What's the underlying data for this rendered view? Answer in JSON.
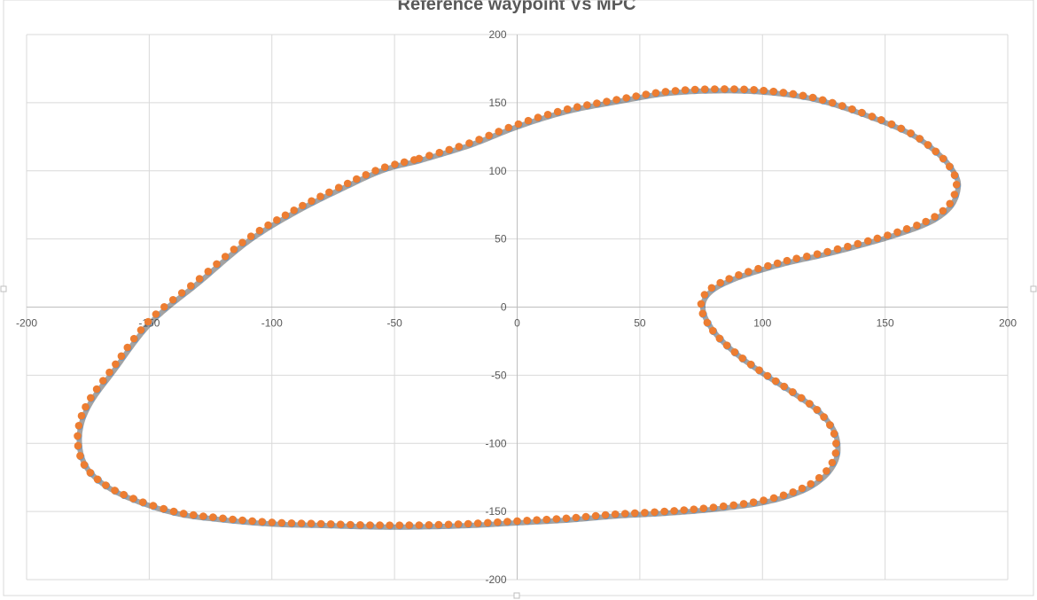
{
  "chart_data": {
    "type": "scatter",
    "title": "Reference waypoint Vs MPC",
    "xlabel": "",
    "ylabel": "",
    "xlim": [
      -200,
      200
    ],
    "ylim": [
      -200,
      200
    ],
    "x_ticks": [
      -200,
      -150,
      -100,
      -50,
      0,
      50,
      100,
      150,
      200
    ],
    "y_ticks": [
      -200,
      -150,
      -100,
      -50,
      0,
      50,
      100,
      150,
      200
    ],
    "grid": true,
    "legend": "none",
    "series": [
      {
        "color": "#5b9bd5",
        "role": "reference waypoints",
        "path_x": [
          -40,
          -20,
          0,
          20,
          40,
          60,
          80,
          100,
          120,
          140,
          160,
          172,
          178,
          179,
          176,
          168,
          155,
          140,
          125,
          110,
          98,
          88,
          80,
          76,
          75,
          77,
          82,
          90,
          100,
          112,
          122,
          128,
          130,
          129,
          124,
          115,
          100,
          80,
          60,
          40,
          20,
          0,
          -20,
          -40,
          -60,
          -80,
          -100,
          -120,
          -140,
          -160,
          -172,
          -178,
          -179,
          -175,
          -165,
          -150,
          -130,
          -110,
          -90,
          -70,
          -55,
          -42
        ],
        "path_y": [
          109,
          120,
          134,
          145,
          152,
          158,
          160,
          159,
          154,
          143,
          128,
          112,
          98,
          88,
          75,
          64,
          55,
          47,
          40,
          34,
          28,
          22,
          15,
          8,
          0,
          -10,
          -22,
          -35,
          -48,
          -62,
          -75,
          -88,
          -100,
          -112,
          -124,
          -134,
          -142,
          -147,
          -150,
          -152,
          -155,
          -157,
          -159,
          -160,
          -160,
          -159,
          -158,
          -155,
          -150,
          -138,
          -125,
          -110,
          -90,
          -70,
          -45,
          -10,
          20,
          50,
          72,
          90,
          102,
          108
        ]
      },
      {
        "color": "#ed7d31",
        "role": "MPC trajectory",
        "path_x": [
          -40,
          -20,
          0,
          20,
          40,
          60,
          80,
          100,
          120,
          140,
          160,
          172,
          178,
          179,
          176,
          168,
          155,
          140,
          125,
          110,
          98,
          88,
          80,
          76,
          75,
          77,
          82,
          90,
          100,
          112,
          122,
          128,
          130,
          129,
          124,
          115,
          100,
          80,
          60,
          40,
          20,
          0,
          -20,
          -40,
          -60,
          -80,
          -100,
          -120,
          -140,
          -160,
          -172,
          -178,
          -179,
          -175,
          -165,
          -150,
          -130,
          -110,
          -90,
          -70,
          -55,
          -42
        ],
        "path_y": [
          109,
          120,
          134,
          145,
          152,
          158,
          160,
          159,
          154,
          143,
          128,
          112,
          98,
          88,
          75,
          64,
          55,
          47,
          40,
          34,
          28,
          22,
          15,
          8,
          0,
          -10,
          -22,
          -35,
          -48,
          -62,
          -75,
          -88,
          -100,
          -112,
          -124,
          -134,
          -142,
          -147,
          -150,
          -152,
          -155,
          -157,
          -159,
          -160,
          -160,
          -159,
          -158,
          -155,
          -150,
          -138,
          -125,
          -110,
          -90,
          -70,
          -45,
          -10,
          20,
          50,
          72,
          90,
          102,
          108
        ]
      }
    ]
  }
}
